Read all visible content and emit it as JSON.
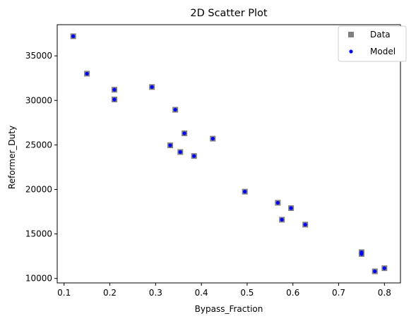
{
  "chart_data": {
    "type": "scatter",
    "title": "2D Scatter Plot",
    "xlabel": "Bypass_Fraction",
    "ylabel": "Reformer_Duty",
    "xlim": [
      0.085,
      0.835
    ],
    "ylim": [
      9500,
      38500
    ],
    "xticks": [
      0.1,
      0.2,
      0.3,
      0.4,
      0.5,
      0.6,
      0.7,
      0.8
    ],
    "xtick_labels": [
      "0.1",
      "0.2",
      "0.3",
      "0.4",
      "0.5",
      "0.6",
      "0.7",
      "0.8"
    ],
    "yticks": [
      10000,
      15000,
      20000,
      25000,
      30000,
      35000
    ],
    "ytick_labels": [
      "10000",
      "15000",
      "20000",
      "25000",
      "30000",
      "35000"
    ],
    "grid": false,
    "legend_position": "top-right",
    "series": [
      {
        "name": "Data",
        "marker": "square",
        "color": "#808080",
        "points": [
          [
            0.12,
            37200
          ],
          [
            0.15,
            33000
          ],
          [
            0.21,
            31200
          ],
          [
            0.21,
            30100
          ],
          [
            0.292,
            31500
          ],
          [
            0.343,
            28950
          ],
          [
            0.363,
            26300
          ],
          [
            0.332,
            24950
          ],
          [
            0.354,
            24200
          ],
          [
            0.384,
            23750
          ],
          [
            0.425,
            25700
          ],
          [
            0.495,
            19750
          ],
          [
            0.567,
            18500
          ],
          [
            0.596,
            17900
          ],
          [
            0.576,
            16600
          ],
          [
            0.627,
            16050
          ],
          [
            0.75,
            12950
          ],
          [
            0.75,
            12750
          ],
          [
            0.779,
            10800
          ],
          [
            0.8,
            11150
          ]
        ]
      },
      {
        "name": "Model",
        "marker": "circle",
        "color": "#0000ff",
        "points": [
          [
            0.12,
            37200
          ],
          [
            0.15,
            33000
          ],
          [
            0.21,
            31200
          ],
          [
            0.21,
            30100
          ],
          [
            0.292,
            31500
          ],
          [
            0.343,
            28950
          ],
          [
            0.363,
            26300
          ],
          [
            0.332,
            24950
          ],
          [
            0.354,
            24200
          ],
          [
            0.384,
            23750
          ],
          [
            0.425,
            25700
          ],
          [
            0.495,
            19750
          ],
          [
            0.567,
            18500
          ],
          [
            0.596,
            17900
          ],
          [
            0.576,
            16600
          ],
          [
            0.627,
            16050
          ],
          [
            0.75,
            12950
          ],
          [
            0.75,
            12750
          ],
          [
            0.779,
            10800
          ],
          [
            0.8,
            11150
          ]
        ]
      }
    ]
  }
}
